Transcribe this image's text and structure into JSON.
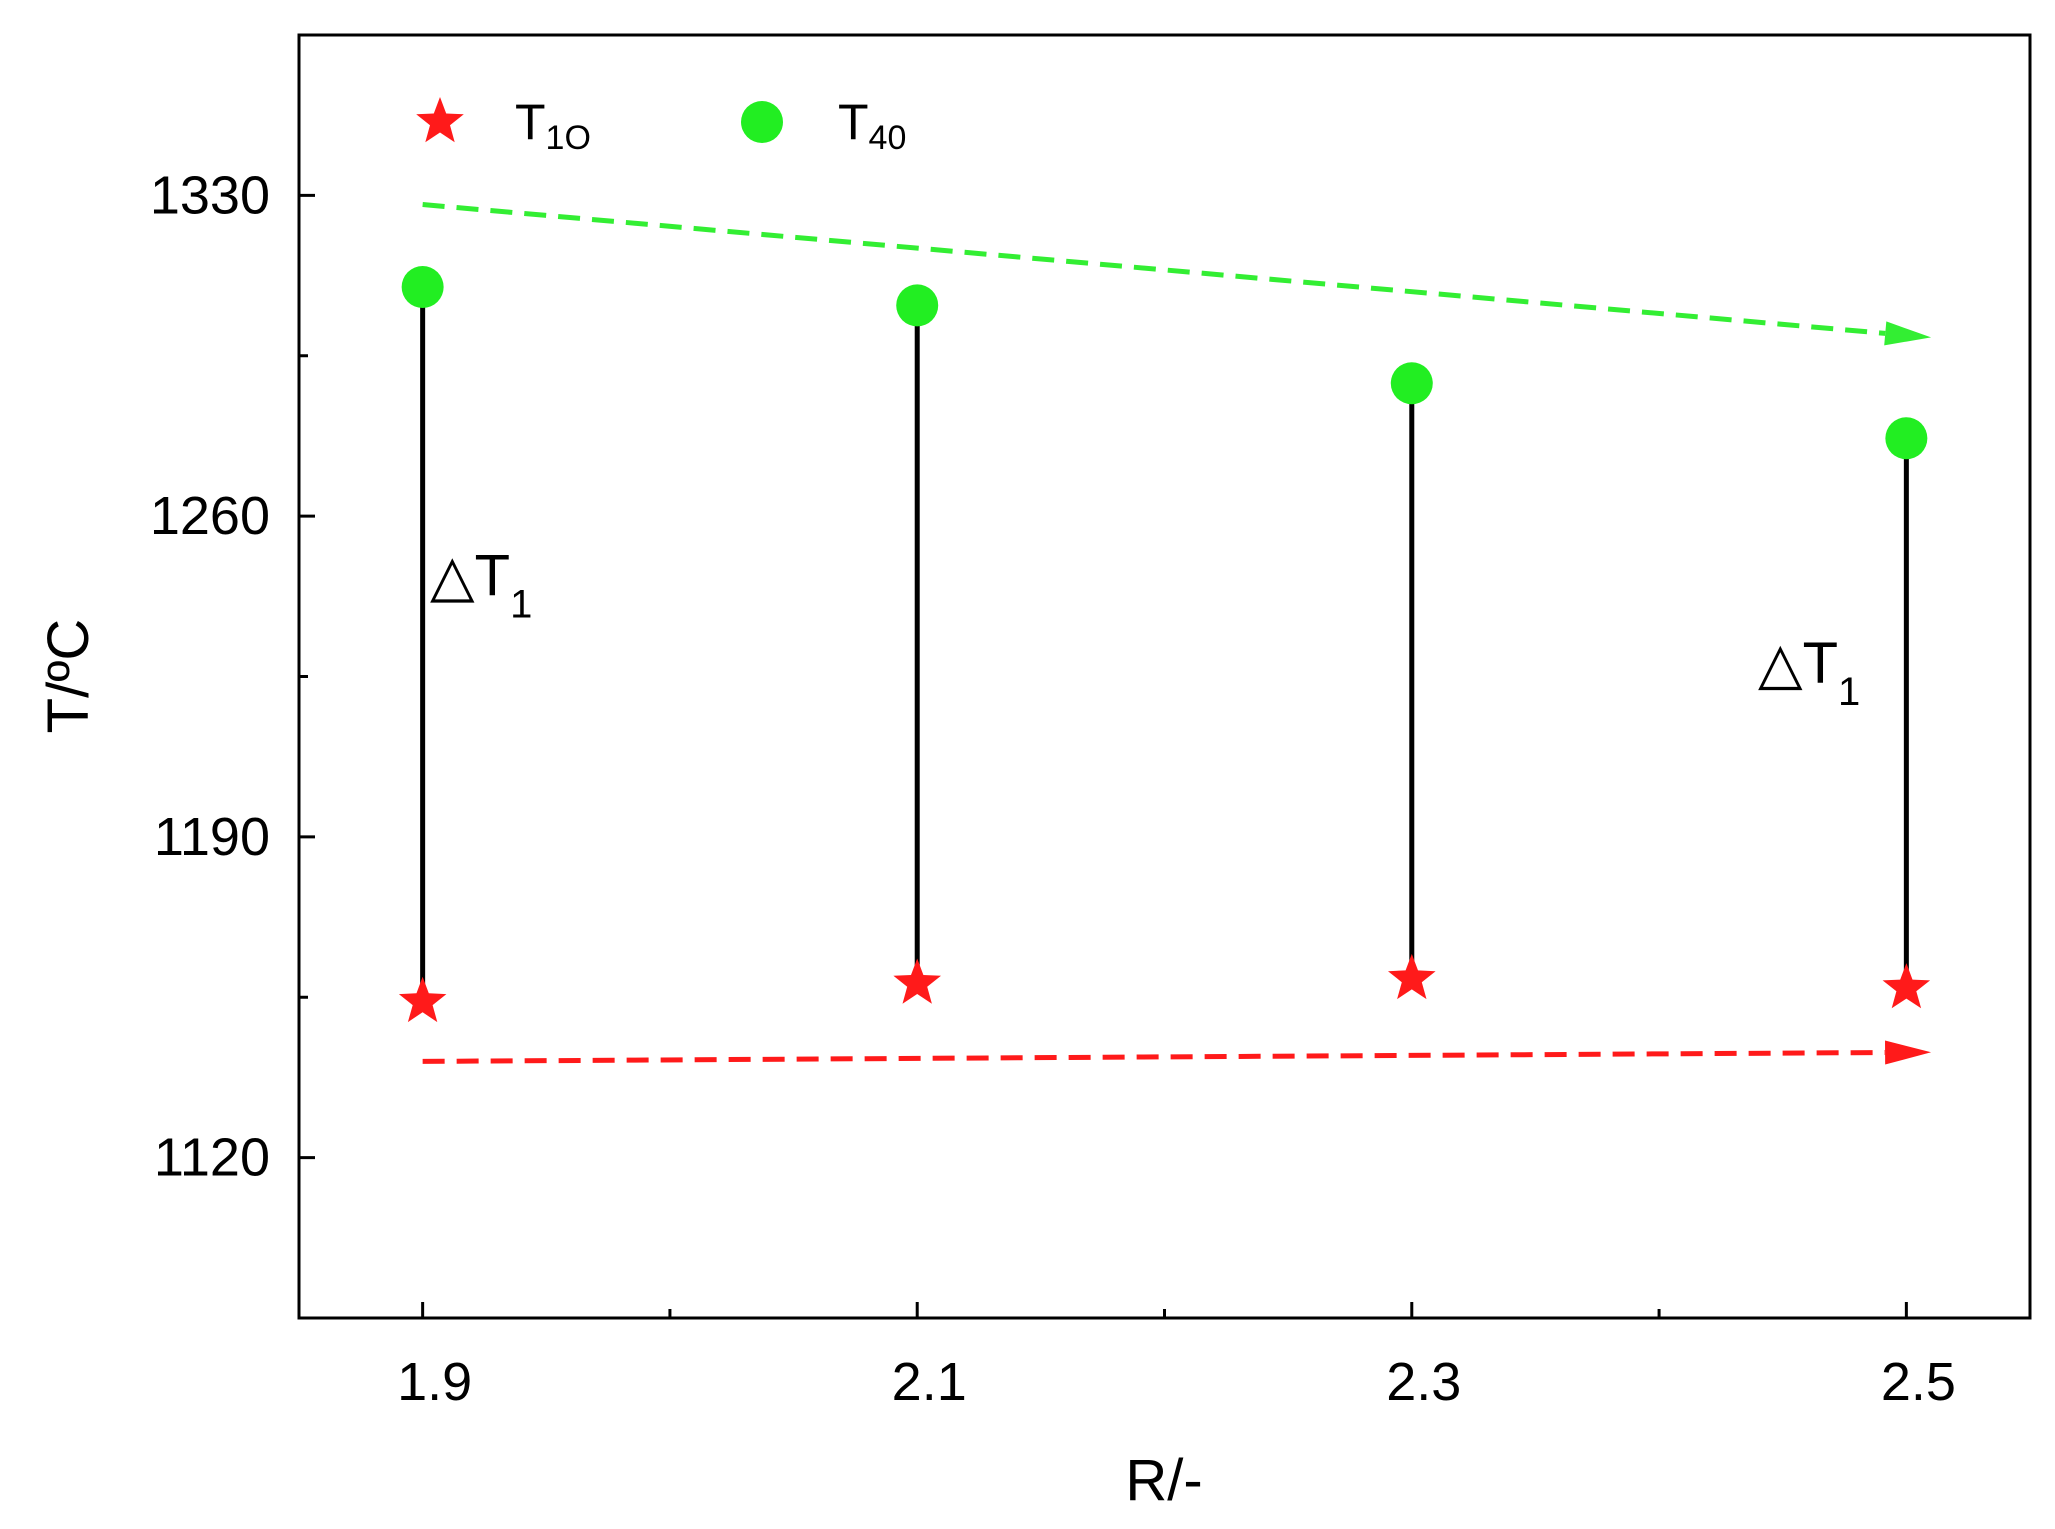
{
  "chart_data": {
    "type": "scatter",
    "title": "",
    "xlabel": "R/-",
    "ylabel": "T/ºC",
    "xlim": [
      1.85,
      2.55
    ],
    "ylim": [
      1085,
      1365
    ],
    "x_ticks": [
      1.9,
      2.1,
      2.3,
      2.5
    ],
    "x_tick_labels": [
      "1.9",
      "2.1",
      "2.3",
      "2.5"
    ],
    "y_ticks": [
      1120,
      1190,
      1260,
      1330
    ],
    "y_tick_labels": [
      "1120",
      "1190",
      "1260",
      "1330"
    ],
    "grid": false,
    "legend_position": "top-left",
    "series": [
      {
        "name_main": "T",
        "name_sub": "1O",
        "marker": "star",
        "color": "#ff1a1a",
        "x": [
          1.9,
          2.1,
          2.3,
          2.5
        ],
        "y": [
          1154,
          1158,
          1159,
          1157
        ]
      },
      {
        "name_main": "T",
        "name_sub": "40",
        "marker": "circle",
        "color": "#22ee22",
        "x": [
          1.9,
          2.1,
          2.3,
          2.5
        ],
        "y": [
          1310,
          1306,
          1289,
          1277
        ]
      }
    ],
    "trend_arrows": [
      {
        "color": "#33ee33",
        "x": [
          1.9,
          2.51
        ],
        "y": [
          1328,
          1299
        ]
      },
      {
        "color": "#ff1a1a",
        "x": [
          1.9,
          2.51
        ],
        "y": [
          1141,
          1143
        ]
      }
    ],
    "annotations": [
      {
        "main": "△T",
        "sub": "1",
        "x": 1.903,
        "y": 1247
      },
      {
        "main": "△T",
        "sub": "1",
        "x": 2.44,
        "y": 1228
      }
    ]
  }
}
